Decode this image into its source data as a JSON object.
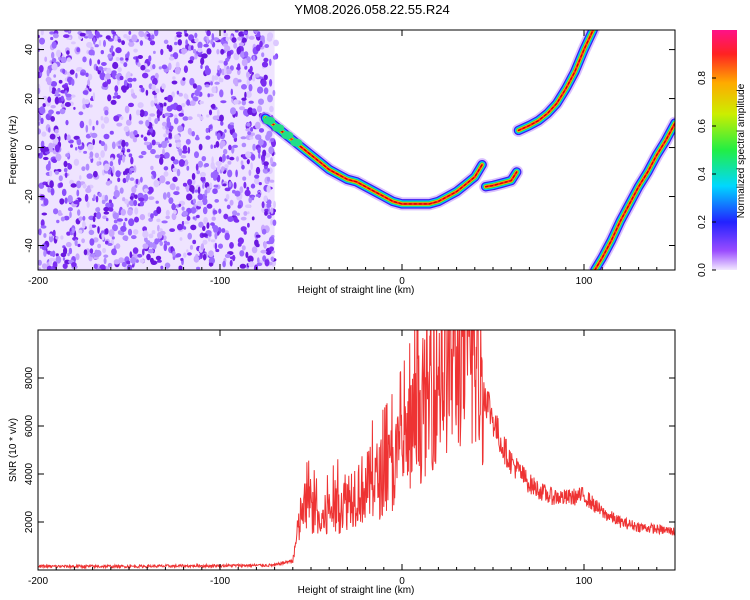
{
  "title": "YM08.2026.058.22.55.R24",
  "chart_data": [
    {
      "type": "heatmap",
      "xlabel": "Height of straight line (km)",
      "ylabel": "Frequency (Hz)",
      "xlim": [
        -200,
        150
      ],
      "ylim": [
        -50,
        48
      ],
      "x_ticks": [
        -200,
        -100,
        0,
        100
      ],
      "y_ticks": [
        -40,
        -20,
        0,
        20,
        40
      ],
      "colorbar": {
        "label": "Normalized spectral amplitude",
        "range": [
          0,
          1
        ],
        "ticks": [
          0.0,
          0.2,
          0.4,
          0.6,
          0.8
        ],
        "colormap": "rainbow (violet-blue-cyan-green-yellow-red-magenta)"
      },
      "noise_region": {
        "x_range": [
          -200,
          -70
        ],
        "dominant_color": "#7b2cf0"
      },
      "ridges": [
        {
          "name": "main trace",
          "x": [
            -75,
            -70,
            -65,
            -60,
            -55,
            -50,
            -45,
            -40,
            -35,
            -30,
            -25,
            -20,
            -15,
            -10,
            -5,
            0,
            5,
            10,
            15,
            20,
            25,
            30,
            35,
            40,
            44
          ],
          "y": [
            12,
            9,
            6,
            3,
            0,
            -3,
            -6,
            -9,
            -11,
            -13,
            -14,
            -16,
            -18,
            -20,
            -22,
            -23,
            -23,
            -23,
            -23,
            -22,
            -20,
            -18,
            -15,
            -12,
            -7
          ]
        },
        {
          "name": "segment 2",
          "x": [
            46,
            50,
            55,
            60,
            63
          ],
          "y": [
            -16,
            -15.5,
            -14.5,
            -13.5,
            -10
          ]
        },
        {
          "name": "segment 3",
          "x": [
            64,
            70,
            75,
            80,
            85,
            90,
            95,
            100,
            105
          ],
          "y": [
            7,
            9,
            11,
            14,
            18,
            24,
            31,
            40,
            48
          ]
        },
        {
          "name": "segment 4",
          "x": [
            106,
            110,
            115,
            120,
            125,
            130,
            135,
            140,
            145,
            150
          ],
          "y": [
            -50,
            -45,
            -38,
            -30,
            -23,
            -16,
            -10,
            -3,
            3,
            10
          ]
        }
      ]
    },
    {
      "type": "line",
      "xlabel": "Height of straight line (km)",
      "ylabel": "SNR (10 * v/v)",
      "xlim": [
        -200,
        150
      ],
      "ylim": [
        0,
        10000
      ],
      "x_ticks": [
        -200,
        -100,
        0,
        100
      ],
      "y_ticks": [
        2000,
        4000,
        6000,
        8000
      ],
      "series": [
        {
          "color": "#ee3333",
          "x": [
            -200,
            -150,
            -100,
            -70,
            -60,
            -55,
            -50,
            -45,
            -40,
            -35,
            -30,
            -25,
            -20,
            -15,
            -10,
            -5,
            0,
            5,
            10,
            15,
            20,
            25,
            30,
            35,
            40,
            45,
            50,
            55,
            60,
            70,
            80,
            90,
            100,
            110,
            120,
            130,
            140,
            150
          ],
          "y": [
            150,
            150,
            180,
            200,
            400,
            2500,
            2700,
            1900,
            2400,
            2700,
            3000,
            3300,
            3400,
            3700,
            3900,
            4300,
            4900,
            5600,
            6500,
            7300,
            8000,
            8500,
            8800,
            8800,
            8500,
            7500,
            6300,
            5200,
            4500,
            3600,
            3100,
            3000,
            3100,
            2400,
            2000,
            1800,
            1700,
            1600
          ]
        }
      ]
    }
  ]
}
